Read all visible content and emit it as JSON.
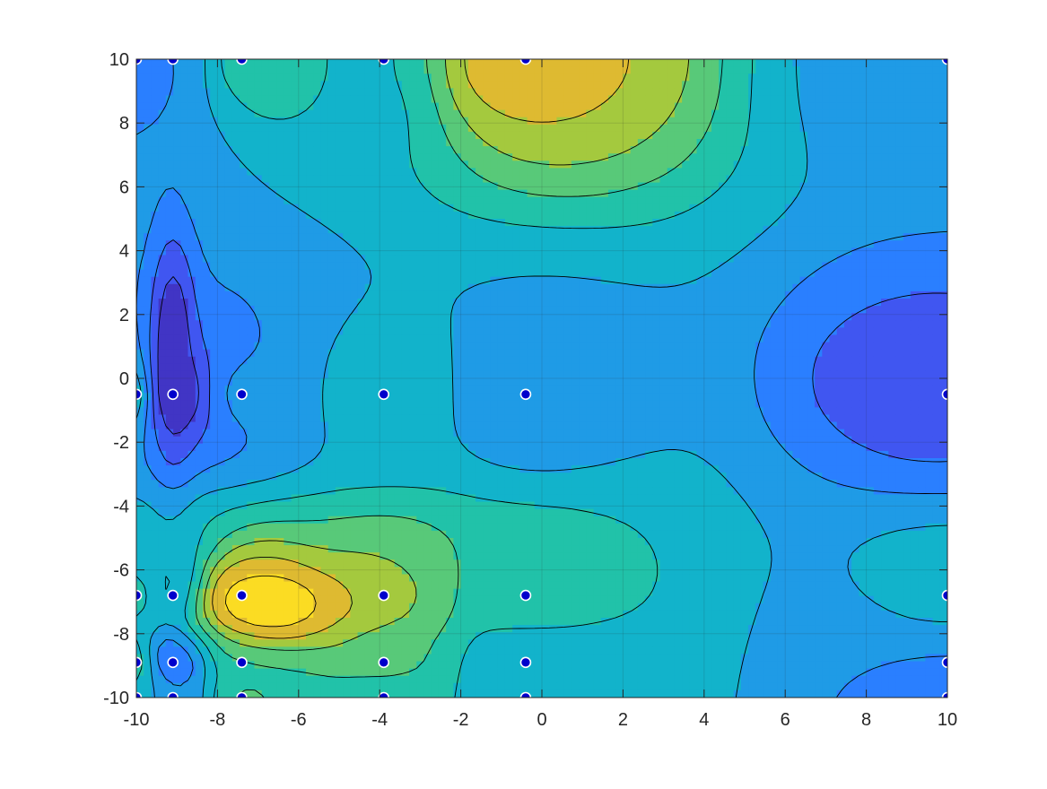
{
  "chart_data": {
    "type": "contour",
    "title": "",
    "xlabel": "",
    "ylabel": "",
    "xlim": [
      -10,
      10
    ],
    "ylim": [
      -10,
      10
    ],
    "x_ticks": [
      -10,
      -8,
      -6,
      -4,
      -2,
      0,
      2,
      4,
      6,
      8,
      10
    ],
    "y_ticks": [
      -10,
      -8,
      -6,
      -4,
      -2,
      0,
      2,
      4,
      6,
      8,
      10
    ],
    "x_tick_labels": [
      "-10",
      "-8",
      "-6",
      "-4",
      "-2",
      "0",
      "2",
      "4",
      "6",
      "8",
      "10"
    ],
    "y_tick_labels": [
      "-10",
      "-8",
      "-6",
      "-4",
      "-2",
      "0",
      "2",
      "4",
      "6",
      "8",
      "10"
    ],
    "grid": true,
    "colormap": "parula",
    "colors": {
      "point_fill": "#0000cc",
      "point_edge": "#ffffff",
      "contour_line": "#000000",
      "axis": "#262626"
    },
    "sample_grid_x": [
      -10,
      -9.1,
      -7.4,
      -3.9,
      -0.4,
      10
    ],
    "sample_grid_y": [
      10,
      -0.5,
      -6.8,
      -8.9,
      -10
    ],
    "sample_values": [
      [
        0.25,
        0.3,
        0.5,
        0.42,
        0.8,
        0.36
      ],
      [
        0.55,
        0.02,
        0.32,
        0.44,
        0.35,
        0.22
      ],
      [
        0.55,
        0.22,
        0.82,
        0.7,
        0.56,
        0.44
      ],
      [
        0.62,
        0.16,
        0.52,
        0.62,
        0.44,
        0.3
      ],
      [
        0.52,
        0.28,
        0.62,
        0.55,
        0.4,
        0.26
      ]
    ],
    "features": [
      {
        "x": -9.1,
        "y": 1.0,
        "value": 0.0,
        "spread_x": 0.55,
        "spread_y": 3.5
      },
      {
        "x": -9.1,
        "y": -8.5,
        "value": 0.2,
        "spread_x": 0.5,
        "spread_y": 0.8
      },
      {
        "x": -6.6,
        "y": -7.1,
        "value": 0.97,
        "spread_x": 2.0,
        "spread_y": 1.4
      },
      {
        "x": -0.4,
        "y": 10.0,
        "value": 0.85,
        "spread_x": 2.5,
        "spread_y": 2.0
      },
      {
        "x": -6.5,
        "y": 10.0,
        "value": 0.6,
        "spread_x": 1.2,
        "spread_y": 1.8
      },
      {
        "x": 9.5,
        "y": 0.0,
        "value": 0.12,
        "spread_x": 3.0,
        "spread_y": 2.5
      }
    ]
  }
}
